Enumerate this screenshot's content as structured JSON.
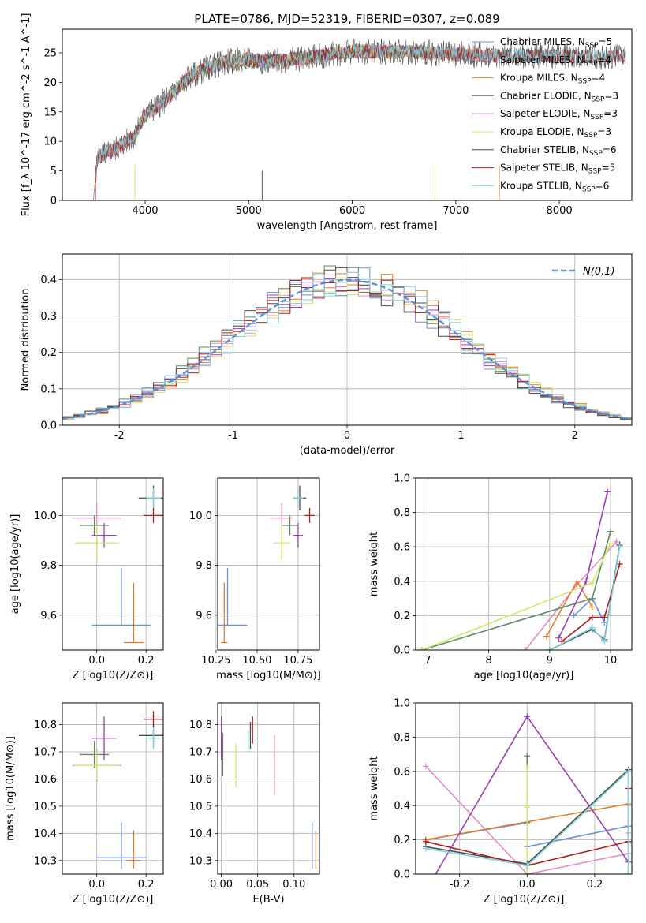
{
  "figure": {
    "title": "PLATE=0786, MJD=52319, FIBERID=0307, z=0.089"
  },
  "colors": {
    "Chabrier MILES": "#6a8fdc",
    "Salpeter MILES": "#e58cc6",
    "Kroupa MILES": "#e07f2a",
    "Chabrier ELODIE": "#5f8a5f",
    "Salpeter ELODIE": "#9b3fb5",
    "Kroupa ELODIE": "#d4e56a",
    "Chabrier STELIB": "#4d4d4d",
    "Salpeter STELIB": "#b01f1f",
    "Kroupa STELIB": "#7fd6e2",
    "gauss": "#5b8fd6"
  },
  "chart_data": [
    {
      "id": "spectrum",
      "type": "line",
      "xlabel": "wavelength [Angstrom, rest frame]",
      "ylabel": "Flux [f_λ 10^-17 erg cm^-2 s^-1 A^-1]",
      "xlim": [
        3200,
        8700
      ],
      "ylim": [
        0,
        29
      ],
      "xticks": [
        4000,
        5000,
        6000,
        7000,
        8000
      ],
      "yticks": [
        0,
        5,
        10,
        15,
        20,
        25
      ],
      "legend_position": "right",
      "legend": [
        {
          "label": "Chabrier MILES, N",
          "sub": "SSP",
          "suffix": "=5"
        },
        {
          "label": "Salpeter MILES, N",
          "sub": "SSP",
          "suffix": "=4"
        },
        {
          "label": "Kroupa MILES, N",
          "sub": "SSP",
          "suffix": "=4"
        },
        {
          "label": "Chabrier ELODIE, N",
          "sub": "SSP",
          "suffix": "=3"
        },
        {
          "label": "Salpeter ELODIE, N",
          "sub": "SSP",
          "suffix": "=3"
        },
        {
          "label": "Kroupa ELODIE, N",
          "sub": "SSP",
          "suffix": "=3"
        },
        {
          "label": "Chabrier STELIB, N",
          "sub": "SSP",
          "suffix": "=6"
        },
        {
          "label": "Salpeter STELIB, N",
          "sub": "SSP",
          "suffix": "=5"
        },
        {
          "label": "Kroupa STELIB, N",
          "sub": "SSP",
          "suffix": "=6"
        }
      ],
      "continuum": {
        "x": [
          3500,
          3700,
          3900,
          4000,
          4200,
          4400,
          4600,
          4800,
          5000,
          5200,
          5500,
          6000,
          6500,
          7000,
          7500,
          8000,
          8500
        ],
        "y": [
          7,
          8.5,
          11,
          14.5,
          17,
          20.5,
          22.5,
          23.5,
          23.8,
          23.5,
          24,
          25.2,
          25.2,
          24.7,
          24.5,
          24.5,
          24.3
        ]
      },
      "data_range": [
        3500,
        8640
      ],
      "model_ranges": {
        "MILES": [
          3520,
          7420
        ],
        "ELODIE": [
          3900,
          6800
        ],
        "STELIB": [
          3500,
          8640
        ]
      },
      "grid": false
    },
    {
      "id": "residuals",
      "type": "histogram",
      "xlabel": "(data-model)/error",
      "ylabel": "Normed distribution",
      "xlim": [
        -2.5,
        2.5
      ],
      "ylim": [
        0,
        0.47
      ],
      "xticks": [
        -2,
        -1,
        0,
        1,
        2
      ],
      "yticks": [
        0.0,
        0.1,
        0.2,
        0.3,
        0.4
      ],
      "bin_width": 0.1,
      "legend_label": "N(0,1)",
      "legend_position": "top-right",
      "grid": true
    },
    {
      "id": "age-vs-Z",
      "type": "errorbar",
      "xlabel": "Z [log10(Z/Z⊙)]",
      "ylabel": "age [log10(age/yr)]",
      "xlim": [
        -0.14,
        0.27
      ],
      "ylim": [
        9.46,
        10.15
      ],
      "xticks": [
        0.0,
        0.2
      ],
      "yticks": [
        9.6,
        9.8,
        10.0
      ],
      "grid": true,
      "points": [
        {
          "model": "Chabrier MILES",
          "x": 0.1,
          "xerr": 0.12,
          "y": 9.56,
          "yerr": [
            0,
            0.23
          ]
        },
        {
          "model": "Kroupa MILES",
          "x": 0.15,
          "xerr": 0.04,
          "y": 9.49,
          "yerr": [
            0,
            0.24
          ]
        },
        {
          "model": "Salpeter MILES",
          "x": 0.0,
          "xerr": 0.1,
          "y": 9.99,
          "yerr": 0.06
        },
        {
          "model": "Chabrier ELODIE",
          "x": -0.01,
          "xerr": 0.06,
          "y": 9.96,
          "yerr": 0.04
        },
        {
          "model": "Salpeter ELODIE",
          "x": 0.03,
          "xerr": 0.05,
          "y": 9.92,
          "yerr": 0.05
        },
        {
          "model": "Kroupa ELODIE",
          "x": 0.0,
          "xerr": 0.09,
          "y": 9.89,
          "yerr": 0.07
        },
        {
          "model": "Chabrier STELIB",
          "x": 0.23,
          "xerr": 0.06,
          "y": 10.07,
          "yerr": 0.05
        },
        {
          "model": "Salpeter STELIB",
          "x": 0.23,
          "xerr": 0.04,
          "y": 10.0,
          "yerr": 0.03
        },
        {
          "model": "Kroupa STELIB",
          "x": 0.23,
          "xerr": 0.03,
          "y": 10.07,
          "yerr": 0.04
        }
      ]
    },
    {
      "id": "age-vs-mass",
      "type": "errorbar",
      "xlabel": "mass [log10(M/M⊙)]",
      "ylabel": "",
      "xlim": [
        10.26,
        10.88
      ],
      "ylim": [
        9.46,
        10.15
      ],
      "xticks": [
        10.25,
        10.5,
        10.75
      ],
      "yticks": [
        9.6,
        9.8,
        10.0
      ],
      "grid": true,
      "points": [
        {
          "model": "Chabrier MILES",
          "x": 10.32,
          "xerr": 0.12,
          "y": 9.56,
          "yerr": [
            0,
            0.23
          ]
        },
        {
          "model": "Kroupa MILES",
          "x": 10.3,
          "xerr": 0.02,
          "y": 9.49,
          "yerr": [
            0,
            0.24
          ]
        },
        {
          "model": "Salpeter MILES",
          "x": 10.65,
          "xerr": 0.07,
          "y": 9.99,
          "yerr": 0.06
        },
        {
          "model": "Chabrier ELODIE",
          "x": 10.7,
          "xerr": 0.05,
          "y": 9.96,
          "yerr": 0.04
        },
        {
          "model": "Salpeter ELODIE",
          "x": 10.75,
          "xerr": 0.03,
          "y": 9.92,
          "yerr": 0.05
        },
        {
          "model": "Kroupa ELODIE",
          "x": 10.65,
          "xerr": 0.05,
          "y": 9.89,
          "yerr": 0.07
        },
        {
          "model": "Chabrier STELIB",
          "x": 10.76,
          "xerr": 0.04,
          "y": 10.07,
          "yerr": 0.05
        },
        {
          "model": "Salpeter STELIB",
          "x": 10.82,
          "xerr": 0.03,
          "y": 10.0,
          "yerr": 0.03
        },
        {
          "model": "Kroupa STELIB",
          "x": 10.75,
          "xerr": 0.03,
          "y": 10.07,
          "yerr": 0.04
        }
      ]
    },
    {
      "id": "weight-vs-age",
      "type": "line",
      "xlabel": "age [log10(age/yr)]",
      "ylabel": "mass weight",
      "xlim": [
        6.8,
        10.35
      ],
      "ylim": [
        0,
        1
      ],
      "xticks": [
        7,
        8,
        9,
        10
      ],
      "yticks": [
        0.0,
        0.2,
        0.4,
        0.6,
        0.8,
        1.0
      ],
      "grid": true,
      "series": [
        {
          "model": "Chabrier MILES",
          "x": [
            9.4,
            9.7,
            9.9
          ],
          "y": [
            0.2,
            0.3,
            0.16
          ]
        },
        {
          "model": "Salpeter MILES",
          "x": [
            8.6,
            9.45,
            10.1
          ],
          "y": [
            0.0,
            0.38,
            0.63
          ]
        },
        {
          "model": "Kroupa MILES",
          "x": [
            8.95,
            9.45,
            9.7
          ],
          "y": [
            0.08,
            0.4,
            0.25
          ]
        },
        {
          "model": "Chabrier ELODIE",
          "x": [
            6.9,
            9.7,
            10.0
          ],
          "y": [
            0.0,
            0.3,
            0.69
          ]
        },
        {
          "model": "Salpeter ELODIE",
          "x": [
            9.15,
            9.6,
            9.95
          ],
          "y": [
            0.07,
            0.4,
            0.92
          ]
        },
        {
          "model": "Kroupa ELODIE",
          "x": [
            6.9,
            9.7,
            10.0
          ],
          "y": [
            0.0,
            0.39,
            0.62
          ]
        },
        {
          "model": "Chabrier STELIB",
          "x": [
            9.0,
            9.7,
            9.9,
            10.15
          ],
          "y": [
            0.0,
            0.12,
            0.06,
            0.61
          ]
        },
        {
          "model": "Salpeter STELIB",
          "x": [
            9.2,
            9.7,
            9.9,
            10.15
          ],
          "y": [
            0.05,
            0.19,
            0.19,
            0.5
          ]
        },
        {
          "model": "Kroupa STELIB",
          "x": [
            9.0,
            9.7,
            9.9,
            10.15
          ],
          "y": [
            0.0,
            0.13,
            0.05,
            0.6
          ]
        }
      ]
    },
    {
      "id": "mass-vs-Z",
      "type": "errorbar",
      "xlabel": "Z [log10(Z/Z⊙)]",
      "ylabel": "mass [log10(M/M⊙)]",
      "xlim": [
        -0.14,
        0.27
      ],
      "ylim": [
        10.25,
        10.88
      ],
      "xticks": [
        0.0,
        0.2
      ],
      "yticks": [
        10.3,
        10.4,
        10.5,
        10.6,
        10.7,
        10.8
      ],
      "grid": true,
      "points": [
        {
          "model": "Chabrier MILES",
          "x": 0.1,
          "xerr": 0.1,
          "y": 10.31,
          "yerr": [
            0.04,
            0.13
          ]
        },
        {
          "model": "Kroupa MILES",
          "x": 0.15,
          "xerr": 0.03,
          "y": 10.3,
          "yerr": [
            0.03,
            0.11
          ]
        },
        {
          "model": "Salpeter MILES",
          "x": 0.0,
          "xerr": 0.1,
          "y": 10.65,
          "yerr": 0.06
        },
        {
          "model": "Chabrier ELODIE",
          "x": -0.01,
          "xerr": 0.06,
          "y": 10.69,
          "yerr": 0.05
        },
        {
          "model": "Salpeter ELODIE",
          "x": 0.03,
          "xerr": 0.05,
          "y": 10.75,
          "yerr": 0.08
        },
        {
          "model": "Kroupa ELODIE",
          "x": 0.0,
          "xerr": 0.09,
          "y": 10.65,
          "yerr": 0.05
        },
        {
          "model": "Chabrier STELIB",
          "x": 0.23,
          "xerr": 0.06,
          "y": 10.76,
          "yerr": 0.04
        },
        {
          "model": "Salpeter STELIB",
          "x": 0.23,
          "xerr": 0.04,
          "y": 10.82,
          "yerr": 0.03
        },
        {
          "model": "Kroupa STELIB",
          "x": 0.23,
          "xerr": 0.03,
          "y": 10.75,
          "yerr": 0.04
        }
      ]
    },
    {
      "id": "mass-vs-ebv",
      "type": "errorbar",
      "xlabel": "E(B-V)",
      "ylabel": "",
      "xlim": [
        -0.005,
        0.135
      ],
      "ylim": [
        10.25,
        10.88
      ],
      "xticks": [
        0.0,
        0.05,
        0.1
      ],
      "yticks": [
        10.3,
        10.4,
        10.5,
        10.6,
        10.7,
        10.8
      ],
      "grid": true,
      "points": [
        {
          "model": "Chabrier MILES",
          "x": 0.125,
          "y": 10.31,
          "yerr": [
            0.04,
            0.13
          ]
        },
        {
          "model": "Kroupa MILES",
          "x": 0.13,
          "y": 10.3,
          "yerr": [
            0.03,
            0.11
          ]
        },
        {
          "model": "Salpeter MILES",
          "x": 0.073,
          "y": 10.65,
          "yerr": 0.11
        },
        {
          "model": "Chabrier ELODIE",
          "x": 0.002,
          "y": 10.69,
          "yerr": 0.08
        },
        {
          "model": "Salpeter ELODIE",
          "x": 0.0,
          "y": 10.75,
          "yerr": 0.08
        },
        {
          "model": "Kroupa ELODIE",
          "x": 0.02,
          "y": 10.65,
          "yerr": 0.08
        },
        {
          "model": "Chabrier STELIB",
          "x": 0.04,
          "y": 10.76,
          "yerr": 0.05
        },
        {
          "model": "Salpeter STELIB",
          "x": 0.043,
          "y": 10.78,
          "yerr": 0.05
        },
        {
          "model": "Kroupa STELIB",
          "x": 0.037,
          "y": 10.74,
          "yerr": 0.04
        }
      ]
    },
    {
      "id": "weight-vs-Z",
      "type": "line",
      "xlabel": "Z [log10(Z/Z⊙)]",
      "ylabel": "mass weight",
      "xlim": [
        -0.33,
        0.31
      ],
      "ylim": [
        0,
        1
      ],
      "xticks": [
        -0.2,
        0.0,
        0.2
      ],
      "yticks": [
        0.0,
        0.2,
        0.4,
        0.6,
        0.8,
        1.0
      ],
      "grid": true,
      "series": [
        {
          "model": "Chabrier MILES",
          "x": [
            -0.3,
            0.0,
            0.0,
            0.3
          ],
          "y": [
            0.2,
            0.3,
            0.16,
            0.28
          ]
        },
        {
          "model": "Salpeter MILES",
          "x": [
            -0.3,
            0.0,
            0.3,
            0.3
          ],
          "y": [
            0.63,
            0.0,
            0.12,
            0.24
          ]
        },
        {
          "model": "Kroupa MILES",
          "x": [
            -0.3,
            0.3
          ],
          "y": [
            0.2,
            0.41
          ]
        },
        {
          "model": "Chabrier ELODIE",
          "x": [
            0.0,
            0.0,
            0.0
          ],
          "y": [
            0.0,
            0.3,
            0.69
          ]
        },
        {
          "model": "Salpeter ELODIE",
          "x": [
            -0.3,
            0.0,
            0.3
          ],
          "y": [
            -0.1,
            0.92,
            0.07
          ]
        },
        {
          "model": "Kroupa ELODIE",
          "x": [
            0.0,
            0.0,
            0.0
          ],
          "y": [
            0.0,
            0.39,
            0.62
          ]
        },
        {
          "model": "Chabrier STELIB",
          "x": [
            -0.3,
            0.0,
            0.3,
            0.3
          ],
          "y": [
            0.16,
            0.06,
            0.61,
            0.0
          ]
        },
        {
          "model": "Salpeter STELIB",
          "x": [
            -0.3,
            0.0,
            0.3,
            0.3
          ],
          "y": [
            0.19,
            0.05,
            0.19,
            0.5
          ]
        },
        {
          "model": "Kroupa STELIB",
          "x": [
            -0.3,
            0.0,
            0.3,
            0.3
          ],
          "y": [
            0.15,
            0.05,
            0.6,
            0.0
          ]
        }
      ]
    }
  ]
}
